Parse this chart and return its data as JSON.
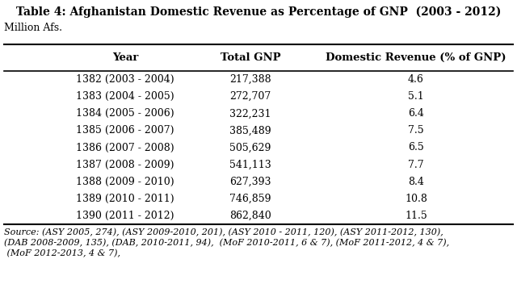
{
  "title": "Table 4: Afghanistan Domestic Revenue as Percentage of GNP  (2003 - 2012)",
  "subtitle": "Million Afs.",
  "columns": [
    "Year",
    "Total GNP",
    "Domestic Revenue (% of GNP)"
  ],
  "rows": [
    [
      "1382 (2003 - 2004)",
      "217,388",
      "4.6"
    ],
    [
      "1383 (2004 - 2005)",
      "272,707",
      "5.1"
    ],
    [
      "1384 (2005 - 2006)",
      "322,231",
      "6.4"
    ],
    [
      "1385 (2006 - 2007)",
      "385,489",
      "7.5"
    ],
    [
      "1386 (2007 - 2008)",
      "505,629",
      "6.5"
    ],
    [
      "1387 (2008 - 2009)",
      "541,113",
      "7.7"
    ],
    [
      "1388 (2009 - 2010)",
      "627,393",
      "8.4"
    ],
    [
      "1389 (2010 - 2011)",
      "746,859",
      "10.8"
    ],
    [
      "1390 (2011 - 2012)",
      "862,840",
      "11.5"
    ]
  ],
  "source_line1": "Source: (ASY 2005, 274), (ASY 2009-2010, 201), (ASY 2010 - 2011, 120), (ASY 2011-2012, 130),",
  "source_line2": "(DAB 2008-2009, 135), (DAB, 2010-2011, 94),  (MoF 2010-2011, 6 & 7), (MoF 2011-2012, 4 & 7),",
  "source_line3": " (MoF 2012-2013, 4 & 7),",
  "bg_color": "#ffffff",
  "text_color": "#000000",
  "line_color": "#000000",
  "title_fontsize": 10,
  "subtitle_fontsize": 9,
  "header_fontsize": 9.5,
  "row_fontsize": 9,
  "source_fontsize": 8
}
